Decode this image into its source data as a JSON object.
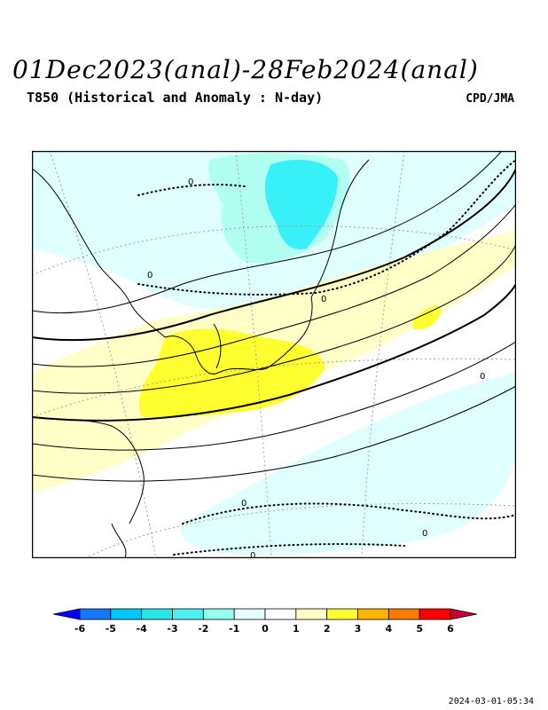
{
  "header": {
    "title": "01Dec2023(anal)-28Feb2024(anal)",
    "subtitle": "T850 (Historical and Anomaly : N-day)",
    "credit": "CPD/JMA"
  },
  "map": {
    "contour_zero_label": "0",
    "colors": {
      "neg1": "#e0ffff",
      "neg2": "#b0fff0",
      "neg3": "#38f0f8",
      "pos1": "#ffffc8",
      "pos2": "#ffff30",
      "land_line": "#000000",
      "grid_line": "#a0a0a0"
    }
  },
  "colorbar": {
    "ticks": [
      "-6",
      "-5",
      "-4",
      "-3",
      "-2",
      "-1",
      "0",
      "1",
      "2",
      "3",
      "4",
      "5",
      "6"
    ],
    "colors": [
      "#0000ff",
      "#1478ff",
      "#00c8ff",
      "#28e6e6",
      "#50f0f0",
      "#96fff0",
      "#e6ffff",
      "#ffffff",
      "#ffffc8",
      "#ffff32",
      "#ffb400",
      "#ff7800",
      "#ff0000",
      "#c80032"
    ]
  },
  "footer": {
    "timestamp": "2024-03-01-05:34"
  }
}
